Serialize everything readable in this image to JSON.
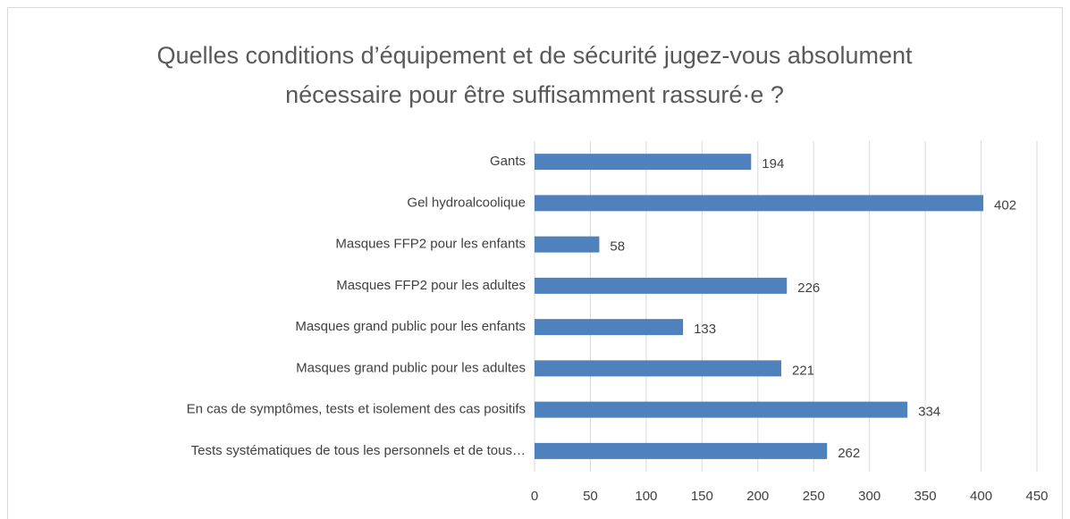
{
  "chart_data": {
    "type": "bar",
    "orientation": "horizontal",
    "title": "Quelles conditions d’équipement et de sécurité jugez-vous absolument nécessaire pour être suffisamment rassuré·e ?",
    "categories": [
      "Gants",
      "Gel hydroalcoolique",
      "Masques FFP2 pour les enfants",
      "Masques FFP2 pour les adultes",
      "Masques grand public pour les enfants",
      "Masques grand public pour les adultes",
      "En cas de symptômes, tests et isolement des cas positifs",
      "Tests systématiques de tous les personnels et de tous…"
    ],
    "values": [
      194,
      402,
      58,
      226,
      133,
      221,
      334,
      262
    ],
    "color": "#4f81bd",
    "xlim": [
      0,
      450
    ],
    "xticks": [
      0,
      50,
      100,
      150,
      200,
      250,
      300,
      350,
      400,
      450
    ],
    "grid": true
  }
}
